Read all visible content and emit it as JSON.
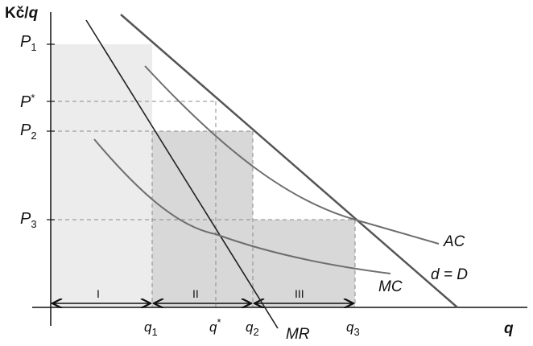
{
  "axes": {
    "y_title_main": "Kč/",
    "y_title_italic": "q",
    "x_title": "q"
  },
  "y_labels": {
    "p1": {
      "letter": "P",
      "sub": "1"
    },
    "pstar": {
      "letter": "P",
      "sup": "*"
    },
    "p2": {
      "letter": "P",
      "sub": "2"
    },
    "p3": {
      "letter": "P",
      "sub": "3"
    }
  },
  "x_labels": {
    "q1": {
      "letter": "q",
      "sub": "1"
    },
    "qstar": {
      "letter": "q",
      "sup": "*"
    },
    "q2": {
      "letter": "q",
      "sub": "2"
    },
    "q3": {
      "letter": "q",
      "sub": "3"
    }
  },
  "curve_labels": {
    "ac": "AC",
    "mc": "MC",
    "demand": "d = D",
    "mr": "MR"
  },
  "blocks": {
    "one": "I",
    "two": "II",
    "three": "III"
  },
  "colors": {
    "block_fill": "#d8d8d8",
    "block_fill_light": "#ececec",
    "curve_gray": "#6e6e6e",
    "line_dark": "#222222",
    "dashed": "#8a8a8a"
  }
}
